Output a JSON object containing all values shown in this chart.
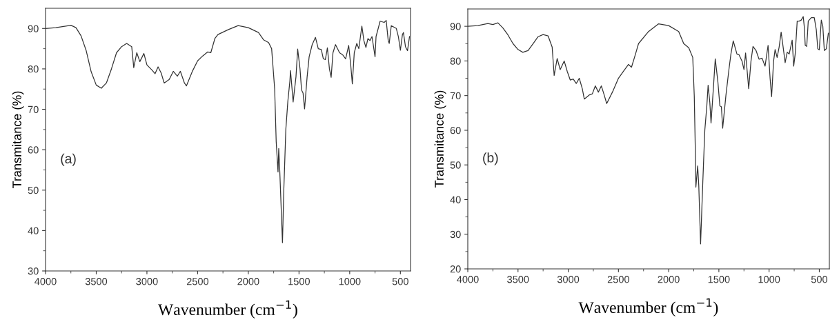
{
  "chart_data": [
    {
      "type": "line",
      "xlabel": "Wavenumber (cm$^{−1}$)",
      "ylabel": "Transmitance (%)",
      "annotations": [
        "(a)"
      ],
      "xlim": [
        4000,
        400
      ],
      "ylim": [
        30,
        95
      ],
      "xticks": [
        4000,
        {
          "value": 3750,
          "label": null
        },
        3500,
        {
          "value": 3250,
          "label": null
        },
        3000,
        {
          "value": 2750,
          "label": null
        },
        2500,
        {
          "value": 2250,
          "label": null
        },
        2000,
        {
          "value": 1750,
          "label": null
        },
        1500,
        {
          "value": 1250,
          "label": null
        },
        1000,
        {
          "value": 750,
          "label": null
        },
        500
      ],
      "yticks": [
        30,
        {
          "value": 35,
          "label": null
        },
        40,
        {
          "value": 45,
          "label": null
        },
        50,
        {
          "value": 55,
          "label": null
        },
        60,
        {
          "value": 65,
          "label": null
        },
        70,
        {
          "value": 75,
          "label": null
        },
        80,
        {
          "value": 85,
          "label": null
        },
        90
      ],
      "grid": false,
      "legend": false,
      "marker": "none",
      "line_style": "solid",
      "series": [
        {
          "color": "#333333",
          "x": [
            4000,
            3900,
            3800,
            3750,
            3700,
            3650,
            3600,
            3550,
            3500,
            3450,
            3400,
            3350,
            3300,
            3250,
            3200,
            3150,
            3130,
            3100,
            3070,
            3030,
            3000,
            2950,
            2920,
            2890,
            2860,
            2830,
            2780,
            2740,
            2700,
            2670,
            2630,
            2610,
            2550,
            2500,
            2450,
            2400,
            2370,
            2330,
            2300,
            2200,
            2100,
            2000,
            1900,
            1850,
            1800,
            1770,
            1740,
            1725,
            1707,
            1700,
            1690,
            1663,
            1650,
            1630,
            1610,
            1590,
            1584,
            1565,
            1558,
            1530,
            1513,
            1490,
            1475,
            1460,
            1445,
            1420,
            1400,
            1370,
            1338,
            1310,
            1280,
            1260,
            1240,
            1220,
            1200,
            1183,
            1165,
            1140,
            1100,
            1070,
            1040,
            1010,
            990,
            974,
            955,
            930,
            910,
            880,
            860,
            840,
            820,
            800,
            780,
            750,
            740,
            700,
            660,
            640,
            620,
            610,
            590,
            540,
            520,
            500,
            480,
            470,
            450,
            430,
            410
          ],
          "values": [
            90,
            90.2,
            90.6,
            90.8,
            90.2,
            88.2,
            84.6,
            79.3,
            76,
            75.2,
            76.5,
            80,
            84,
            85.5,
            86.3,
            85.5,
            80.3,
            84,
            81.8,
            83.8,
            81,
            79.7,
            78.8,
            80.5,
            79,
            76.5,
            77.4,
            79.4,
            78.2,
            79.4,
            76.5,
            75.8,
            79.5,
            82,
            83.2,
            84.2,
            84,
            87.5,
            88.5,
            89.7,
            90.7,
            90.2,
            89,
            87.2,
            86.5,
            85,
            75,
            62,
            54.5,
            60.3,
            55,
            37,
            50,
            65,
            72,
            77,
            79.6,
            74,
            71.8,
            78,
            84.9,
            80,
            74.8,
            74,
            70.1,
            78,
            83,
            86,
            87.8,
            85,
            84.8,
            82.5,
            82.3,
            85.2,
            80,
            77.9,
            84,
            86,
            84,
            83.5,
            82.5,
            85.8,
            81,
            76.3,
            84,
            86.3,
            85,
            90.6,
            87,
            85.3,
            87.5,
            87,
            88,
            83,
            88,
            91.8,
            91.5,
            92,
            87,
            86.3,
            90.7,
            90,
            88,
            84.6,
            88.5,
            89,
            85.5,
            84.5,
            88
          ]
        }
      ]
    },
    {
      "type": "line",
      "xlabel": "Wavenumber (cm$^{−1}$)",
      "ylabel": "Transmitance (%)",
      "annotations": [
        "(b)"
      ],
      "xlim": [
        4000,
        400
      ],
      "ylim": [
        20,
        95
      ],
      "xticks": [
        4000,
        {
          "value": 3750,
          "label": null
        },
        3500,
        {
          "value": 3250,
          "label": null
        },
        3000,
        {
          "value": 2750,
          "label": null
        },
        2500,
        {
          "value": 2250,
          "label": null
        },
        2000,
        {
          "value": 1750,
          "label": null
        },
        1500,
        {
          "value": 1250,
          "label": null
        },
        1000,
        {
          "value": 750,
          "label": null
        },
        500
      ],
      "yticks": [
        20,
        {
          "value": 25,
          "label": null
        },
        30,
        {
          "value": 35,
          "label": null
        },
        40,
        {
          "value": 45,
          "label": null
        },
        50,
        {
          "value": 55,
          "label": null
        },
        60,
        {
          "value": 65,
          "label": null
        },
        70,
        {
          "value": 75,
          "label": null
        },
        80,
        {
          "value": 85,
          "label": null
        },
        90
      ],
      "grid": false,
      "legend": false,
      "marker": "none",
      "line_style": "solid",
      "series": [
        {
          "color": "#333333",
          "x": [
            4000,
            3900,
            3800,
            3750,
            3700,
            3650,
            3600,
            3550,
            3500,
            3452,
            3400,
            3350,
            3300,
            3250,
            3200,
            3160,
            3140,
            3110,
            3080,
            3040,
            3010,
            2980,
            2950,
            2920,
            2890,
            2860,
            2840,
            2790,
            2760,
            2730,
            2700,
            2670,
            2640,
            2617,
            2560,
            2500,
            2450,
            2400,
            2370,
            2330,
            2300,
            2200,
            2100,
            2000,
            1900,
            1850,
            1800,
            1760,
            1745,
            1735,
            1729,
            1711,
            1700,
            1682,
            1660,
            1640,
            1620,
            1607,
            1590,
            1578,
            1555,
            1536,
            1510,
            1490,
            1475,
            1462,
            1430,
            1400,
            1380,
            1357,
            1320,
            1300,
            1270,
            1250,
            1234,
            1215,
            1203,
            1180,
            1160,
            1130,
            1100,
            1070,
            1040,
            1010,
            990,
            975,
            955,
            940,
            920,
            900,
            880,
            860,
            840,
            820,
            800,
            785,
            770,
            755,
            740,
            720,
            700,
            680,
            660,
            650,
            640,
            625,
            610,
            580,
            550,
            530,
            515,
            500,
            480,
            465,
            450,
            430,
            410
          ],
          "values": [
            90,
            90.2,
            90.8,
            90.5,
            91,
            89.5,
            87.5,
            85,
            83.3,
            82.5,
            83,
            85,
            87,
            87.6,
            87.2,
            84,
            75.8,
            80.7,
            77.5,
            80,
            77,
            74.5,
            74.8,
            73.5,
            75,
            72,
            69,
            70.2,
            70.5,
            72.8,
            71,
            72.8,
            70,
            67.7,
            71,
            75,
            77,
            79,
            78.2,
            82,
            85,
            88.5,
            90.7,
            90.2,
            88.5,
            85,
            83.8,
            81,
            70,
            55,
            43.6,
            49.7,
            44,
            27.2,
            45,
            60,
            67,
            73,
            68,
            62.1,
            72,
            80.6,
            74,
            67,
            66.8,
            60.6,
            70,
            77.5,
            82,
            85.8,
            82,
            81.8,
            80,
            77.5,
            82.3,
            76,
            72,
            80,
            84.2,
            83,
            80.5,
            80.8,
            78.5,
            84.5,
            75,
            69.7,
            80,
            83.3,
            81,
            84,
            88.3,
            84,
            79.5,
            82.5,
            82,
            84,
            86,
            78.5,
            82,
            91.5,
            91.5,
            91.8,
            92.8,
            90,
            84.5,
            84.2,
            91.5,
            92.5,
            92.5,
            89,
            83.5,
            83.2,
            91.8,
            90,
            83,
            83.5,
            88
          ]
        }
      ]
    }
  ]
}
